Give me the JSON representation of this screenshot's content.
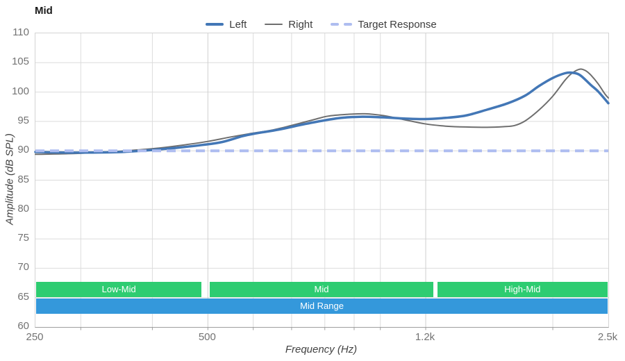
{
  "chart_data": {
    "type": "line",
    "title": "Mid",
    "x_axis": {
      "label": "Frequency (Hz)",
      "scale": "log",
      "min": 250,
      "max": 2500,
      "ticks": [
        {
          "value": 250,
          "label": "250"
        },
        {
          "value": 500,
          "label": "500"
        },
        {
          "value": 1200,
          "label": "1.2k"
        },
        {
          "value": 2500,
          "label": "2.5k"
        }
      ],
      "minor_gridlines": [
        300,
        400,
        600,
        700,
        800,
        900,
        1000,
        2000
      ]
    },
    "y_axis": {
      "label": "Amplitude (dB SPL)",
      "min": 60,
      "max": 110,
      "ticks": [
        110,
        105,
        100,
        95,
        90,
        85,
        80,
        75,
        70,
        65,
        60
      ]
    },
    "grid": true,
    "legend_position": "top-center",
    "series": [
      {
        "name": "Left",
        "color": "#4377b6",
        "width": 3.5,
        "points": [
          [
            250,
            89.8
          ],
          [
            280,
            89.7
          ],
          [
            315,
            89.7
          ],
          [
            355,
            89.8
          ],
          [
            395,
            90.1
          ],
          [
            440,
            90.5
          ],
          [
            490,
            91.0
          ],
          [
            530,
            91.5
          ],
          [
            575,
            92.5
          ],
          [
            610,
            93.0
          ],
          [
            665,
            93.6
          ],
          [
            725,
            94.4
          ],
          [
            790,
            95.1
          ],
          [
            855,
            95.6
          ],
          [
            930,
            95.8
          ],
          [
            1010,
            95.7
          ],
          [
            1100,
            95.5
          ],
          [
            1195,
            95.4
          ],
          [
            1300,
            95.6
          ],
          [
            1410,
            96.0
          ],
          [
            1535,
            97.0
          ],
          [
            1670,
            98.1
          ],
          [
            1790,
            99.4
          ],
          [
            1890,
            101.0
          ],
          [
            2000,
            102.4
          ],
          [
            2100,
            103.2
          ],
          [
            2160,
            103.3
          ],
          [
            2230,
            102.9
          ],
          [
            2330,
            101.2
          ],
          [
            2400,
            100.1
          ],
          [
            2500,
            98.1
          ]
        ]
      },
      {
        "name": "Right",
        "color": "#6e6e6e",
        "width": 2,
        "points": [
          [
            250,
            89.4
          ],
          [
            285,
            89.5
          ],
          [
            320,
            89.7
          ],
          [
            360,
            90.0
          ],
          [
            405,
            90.4
          ],
          [
            455,
            91.0
          ],
          [
            500,
            91.6
          ],
          [
            545,
            92.3
          ],
          [
            590,
            92.9
          ],
          [
            645,
            93.5
          ],
          [
            705,
            94.4
          ],
          [
            765,
            95.3
          ],
          [
            810,
            95.9
          ],
          [
            875,
            96.2
          ],
          [
            940,
            96.3
          ],
          [
            1010,
            96.0
          ],
          [
            1100,
            95.3
          ],
          [
            1195,
            94.6
          ],
          [
            1300,
            94.2
          ],
          [
            1410,
            94.05
          ],
          [
            1535,
            94.0
          ],
          [
            1640,
            94.1
          ],
          [
            1715,
            94.3
          ],
          [
            1790,
            95.1
          ],
          [
            1890,
            96.9
          ],
          [
            2000,
            99.3
          ],
          [
            2100,
            102.0
          ],
          [
            2160,
            103.2
          ],
          [
            2230,
            103.9
          ],
          [
            2285,
            103.6
          ],
          [
            2330,
            102.9
          ],
          [
            2400,
            101.4
          ],
          [
            2465,
            99.7
          ],
          [
            2500,
            99.0
          ]
        ]
      }
    ],
    "target": {
      "name": "Target Response",
      "color": "#aebdf0",
      "width": 4,
      "dash": [
        13,
        8
      ],
      "value": 90
    },
    "bands": {
      "upper": [
        {
          "label": "Low-Mid",
          "from": 250,
          "to": 500,
          "color": "#2ecc71"
        },
        {
          "label": "Mid",
          "from": 500,
          "to": 1250,
          "color": "#2ecc71"
        },
        {
          "label": "High-Mid",
          "from": 1250,
          "to": 2500,
          "color": "#2ecc71"
        }
      ],
      "lower": [
        {
          "label": "Mid Range",
          "from": 250,
          "to": 2500,
          "color": "#3498db"
        }
      ],
      "text_color": "#ffffff"
    },
    "colors": {
      "gridline": "#dcdcdc",
      "major_gridline": "#cfcfcf",
      "axis_line": "#9e9e9e",
      "tick_label": "#737373"
    }
  }
}
